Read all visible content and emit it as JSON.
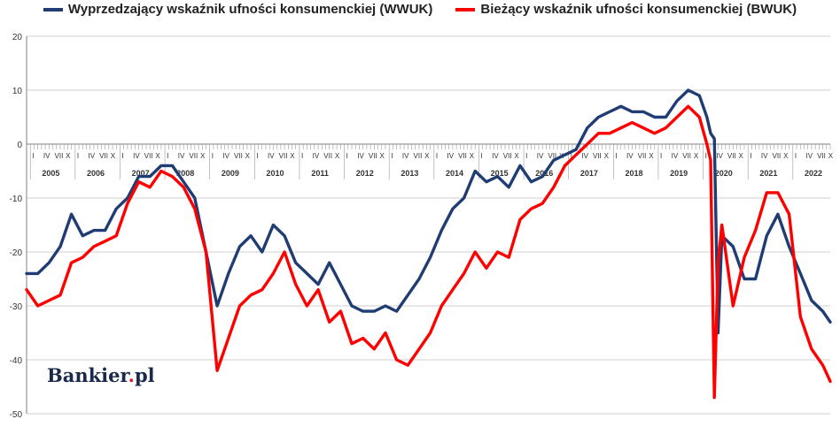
{
  "logo": {
    "text_main": "Bankier",
    "text_dot": ".",
    "text_tld": "pl"
  },
  "chart_data": {
    "type": "line",
    "legend_placement": "top",
    "grid": true,
    "ylim": [
      -50,
      20
    ],
    "yticks": [
      20,
      10,
      0,
      -10,
      -20,
      -30,
      -40,
      -50
    ],
    "x_start": "2004-12",
    "x_end": "2022-11",
    "years": [
      "2005",
      "2006",
      "2007",
      "2008",
      "2009",
      "2010",
      "2011",
      "2012",
      "2013",
      "2014",
      "2015",
      "2016",
      "2017",
      "2018",
      "2019",
      "2020",
      "2021",
      "2022"
    ],
    "quarter_marks": [
      "I",
      "IV",
      "VII",
      "X"
    ],
    "series": [
      {
        "name": "Wyprzedzający wskaźnik ufności konsumenckiej (WWUK)",
        "color": "#1f3d73",
        "x": [
          "2004-12",
          "2005-03",
          "2005-06",
          "2005-09",
          "2005-12",
          "2006-03",
          "2006-06",
          "2006-09",
          "2006-12",
          "2007-03",
          "2007-06",
          "2007-09",
          "2007-12",
          "2008-03",
          "2008-06",
          "2008-09",
          "2008-12",
          "2009-03",
          "2009-06",
          "2009-09",
          "2009-12",
          "2010-03",
          "2010-06",
          "2010-09",
          "2010-12",
          "2011-03",
          "2011-06",
          "2011-09",
          "2011-12",
          "2012-03",
          "2012-06",
          "2012-09",
          "2012-12",
          "2013-03",
          "2013-06",
          "2013-09",
          "2013-12",
          "2014-03",
          "2014-06",
          "2014-09",
          "2014-12",
          "2015-03",
          "2015-06",
          "2015-09",
          "2015-12",
          "2016-03",
          "2016-06",
          "2016-09",
          "2016-12",
          "2017-03",
          "2017-06",
          "2017-09",
          "2017-12",
          "2018-03",
          "2018-06",
          "2018-09",
          "2018-12",
          "2019-03",
          "2019-06",
          "2019-09",
          "2019-12",
          "2020-02",
          "2020-03",
          "2020-04",
          "2020-05",
          "2020-06",
          "2020-09",
          "2020-12",
          "2021-03",
          "2021-06",
          "2021-09",
          "2021-12",
          "2022-03",
          "2022-06",
          "2022-09",
          "2022-11"
        ],
        "values": [
          -24,
          -24,
          -22,
          -19,
          -13,
          -17,
          -16,
          -16,
          -12,
          -10,
          -6,
          -6,
          -4,
          -4,
          -7,
          -10,
          -20,
          -30,
          -24,
          -19,
          -17,
          -20,
          -15,
          -17,
          -22,
          -24,
          -26,
          -22,
          -26,
          -30,
          -31,
          -31,
          -30,
          -31,
          -28,
          -25,
          -21,
          -16,
          -12,
          -10,
          -5,
          -7,
          -6,
          -8,
          -4,
          -7,
          -6,
          -3,
          -2,
          -1,
          3,
          5,
          6,
          7,
          6,
          6,
          5,
          5,
          8,
          10,
          9,
          5,
          2,
          1,
          -35,
          -17,
          -19,
          -25,
          -25,
          -17,
          -13,
          -19,
          -24,
          -29,
          -31,
          -33
        ]
      },
      {
        "name": "Bieżący wskaźnik ufności konsumenckiej (BWUK)",
        "color": "#ff0000",
        "x": [
          "2004-12",
          "2005-03",
          "2005-06",
          "2005-09",
          "2005-12",
          "2006-03",
          "2006-06",
          "2006-09",
          "2006-12",
          "2007-03",
          "2007-06",
          "2007-09",
          "2007-12",
          "2008-03",
          "2008-06",
          "2008-09",
          "2008-12",
          "2009-03",
          "2009-06",
          "2009-09",
          "2009-12",
          "2010-03",
          "2010-06",
          "2010-09",
          "2010-12",
          "2011-03",
          "2011-06",
          "2011-09",
          "2011-12",
          "2012-03",
          "2012-06",
          "2012-09",
          "2012-12",
          "2013-03",
          "2013-06",
          "2013-09",
          "2013-12",
          "2014-03",
          "2014-06",
          "2014-09",
          "2014-12",
          "2015-03",
          "2015-06",
          "2015-09",
          "2015-12",
          "2016-03",
          "2016-06",
          "2016-09",
          "2016-12",
          "2017-03",
          "2017-06",
          "2017-09",
          "2017-12",
          "2018-03",
          "2018-06",
          "2018-09",
          "2018-12",
          "2019-03",
          "2019-06",
          "2019-09",
          "2019-12",
          "2020-02",
          "2020-03",
          "2020-04",
          "2020-05",
          "2020-06",
          "2020-09",
          "2020-12",
          "2021-03",
          "2021-06",
          "2021-09",
          "2021-12",
          "2022-03",
          "2022-06",
          "2022-09",
          "2022-11"
        ],
        "values": [
          -27,
          -30,
          -29,
          -28,
          -22,
          -21,
          -19,
          -18,
          -17,
          -11,
          -7,
          -8,
          -5,
          -6,
          -8,
          -12,
          -20,
          -42,
          -36,
          -30,
          -28,
          -27,
          -24,
          -20,
          -26,
          -30,
          -27,
          -33,
          -31,
          -37,
          -36,
          -38,
          -35,
          -40,
          -41,
          -38,
          -35,
          -30,
          -27,
          -24,
          -20,
          -23,
          -20,
          -21,
          -14,
          -12,
          -11,
          -8,
          -4,
          -2,
          0,
          2,
          2,
          3,
          4,
          3,
          2,
          3,
          5,
          7,
          5,
          0,
          -3,
          -47,
          -22,
          -15,
          -30,
          -21,
          -16,
          -9,
          -9,
          -13,
          -32,
          -38,
          -41,
          -44
        ]
      }
    ]
  }
}
